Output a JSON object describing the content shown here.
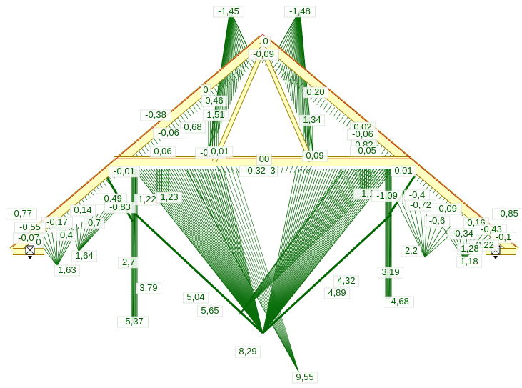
{
  "colors": {
    "diagram_green": "#006600",
    "hatch_green": "#0a6e0a",
    "member_fill": "#ffffc0",
    "member_edge": "#a08000",
    "centerline_red": "#cc0000",
    "label_text": "#006000"
  },
  "icons": [
    "pin-support-icon",
    "roller-support-icon"
  ],
  "labels": [
    "-1,45",
    "-1,48",
    "0",
    "-0,09",
    "0",
    "0,46",
    "0,20",
    "1,51",
    "-0,38",
    "0,68",
    "1,34",
    "-0,06",
    "0,02",
    "-0,06",
    "0,82",
    "0,06",
    "-0,01",
    "0,01",
    "00",
    "0,09",
    "-0,05",
    "-0,32",
    "3",
    "-0,01",
    "0,01",
    "1,22",
    "1,23",
    "-1,1",
    "-1,09",
    "-0,4",
    "-0,49",
    "-0,83",
    "-0,72",
    "-0,09",
    "-0,77",
    "-0,17",
    "0,14",
    "0,7",
    "-0,6",
    "0,16",
    "-0,85",
    "-0,55",
    "-0,07",
    "0,4",
    "0",
    "-0,34",
    "-0,43",
    "-0,1",
    "-0,22",
    "1,64",
    "1,28",
    "1,18",
    "1,63",
    "2,7",
    "2,2",
    "3,79",
    "4,32",
    "3,19",
    "5,04",
    "4,89",
    "5,65",
    "-5,37",
    "-4,68",
    "8,29",
    "9,55"
  ]
}
